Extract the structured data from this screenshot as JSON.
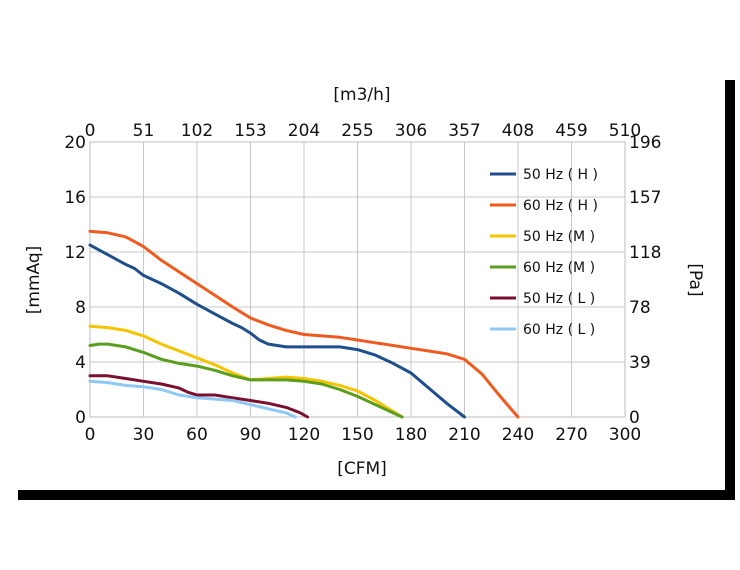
{
  "chart_data": {
    "type": "line",
    "title": "",
    "xlabel": "[CFM]",
    "ylabel": "[mmAq]",
    "x2label": "[m3/h]",
    "y2label": "[Pa]",
    "xlim": [
      0,
      300
    ],
    "ylim": [
      0,
      20
    ],
    "x_ticks": [
      "0",
      "30",
      "60",
      "90",
      "120",
      "150",
      "180",
      "210",
      "240",
      "270",
      "300"
    ],
    "y_ticks": [
      "0",
      "4",
      "8",
      "12",
      "16",
      "20"
    ],
    "x2_ticks": [
      "0",
      "51",
      "102",
      "153",
      "204",
      "255",
      "306",
      "357",
      "408",
      "459",
      "510"
    ],
    "y2_ticks": [
      "0",
      "39",
      "78",
      "118",
      "157",
      "196"
    ],
    "grid": true,
    "legend_position": "top-right inside plot",
    "series": [
      {
        "name": "50 Hz ( H )",
        "color": "#1f4e8c",
        "x": [
          0,
          10,
          20,
          25,
          30,
          40,
          50,
          60,
          70,
          80,
          85,
          90,
          95,
          100,
          110,
          120,
          130,
          140,
          150,
          160,
          170,
          180,
          190,
          200,
          210
        ],
        "y": [
          12.5,
          11.8,
          11.1,
          10.8,
          10.3,
          9.7,
          9.0,
          8.2,
          7.5,
          6.8,
          6.5,
          6.1,
          5.6,
          5.3,
          5.1,
          5.1,
          5.1,
          5.1,
          4.9,
          4.5,
          3.9,
          3.2,
          2.1,
          1.0,
          0.0
        ]
      },
      {
        "name": "60 Hz ( H )",
        "color": "#f05a1e",
        "x": [
          0,
          10,
          20,
          30,
          40,
          60,
          80,
          90,
          100,
          110,
          120,
          130,
          140,
          150,
          160,
          170,
          180,
          190,
          200,
          210,
          220,
          230,
          240
        ],
        "y": [
          13.5,
          13.4,
          13.1,
          12.4,
          11.4,
          9.7,
          8.0,
          7.2,
          6.7,
          6.3,
          6.0,
          5.9,
          5.8,
          5.6,
          5.4,
          5.2,
          5.0,
          4.8,
          4.6,
          4.2,
          3.1,
          1.5,
          0.0
        ]
      },
      {
        "name": "50 Hz (M )",
        "color": "#f5c400",
        "x": [
          0,
          10,
          20,
          30,
          40,
          50,
          60,
          70,
          80,
          90,
          100,
          110,
          120,
          130,
          140,
          150,
          160,
          170,
          175
        ],
        "y": [
          6.6,
          6.5,
          6.3,
          5.9,
          5.3,
          4.8,
          4.3,
          3.8,
          3.2,
          2.7,
          2.8,
          2.9,
          2.8,
          2.6,
          2.3,
          1.9,
          1.2,
          0.4,
          0.0
        ]
      },
      {
        "name": "60 Hz (M )",
        "color": "#5a9e1e",
        "x": [
          0,
          5,
          10,
          20,
          30,
          40,
          50,
          60,
          70,
          80,
          90,
          100,
          110,
          120,
          130,
          140,
          150,
          160,
          170,
          175
        ],
        "y": [
          5.2,
          5.3,
          5.3,
          5.1,
          4.7,
          4.2,
          3.9,
          3.7,
          3.4,
          3.0,
          2.7,
          2.7,
          2.7,
          2.6,
          2.4,
          2.0,
          1.5,
          0.9,
          0.3,
          0.0
        ]
      },
      {
        "name": "50 Hz ( L )",
        "color": "#7a0f2e",
        "x": [
          0,
          10,
          20,
          30,
          40,
          50,
          55,
          60,
          70,
          80,
          90,
          100,
          110,
          118,
          122
        ],
        "y": [
          3.0,
          3.0,
          2.8,
          2.6,
          2.4,
          2.1,
          1.8,
          1.6,
          1.6,
          1.4,
          1.2,
          1.0,
          0.7,
          0.3,
          0.0
        ]
      },
      {
        "name": "60 Hz ( L )",
        "color": "#8ec8f5",
        "x": [
          0,
          10,
          20,
          30,
          40,
          50,
          60,
          70,
          80,
          90,
          100,
          110,
          115
        ],
        "y": [
          2.6,
          2.5,
          2.3,
          2.2,
          2.0,
          1.6,
          1.4,
          1.3,
          1.2,
          0.9,
          0.6,
          0.3,
          0.0
        ]
      }
    ]
  }
}
